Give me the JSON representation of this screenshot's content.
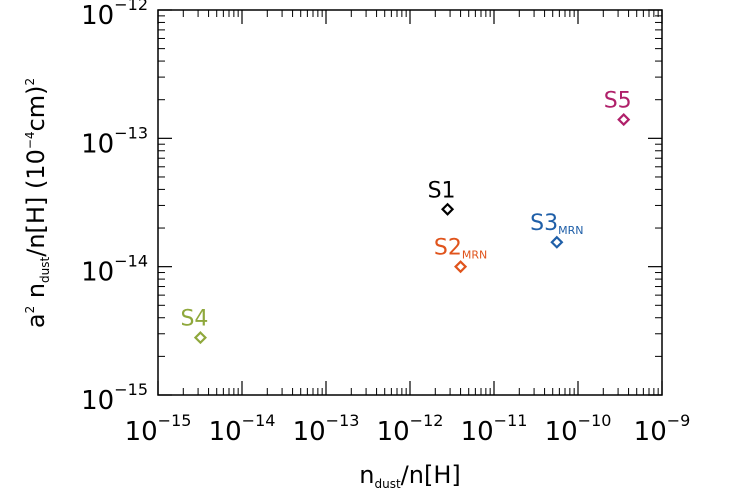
{
  "chart_data": {
    "type": "scatter",
    "title": "",
    "xlabel": "n_dust/n[H]",
    "ylabel": "a² n_dust/n[H] (10⁻⁴cm)²",
    "xscale": "log",
    "yscale": "log",
    "xlim": [
      1e-15,
      1e-09
    ],
    "ylim": [
      1e-15,
      1e-12
    ],
    "x_ticks": [
      {
        "value": 1e-15,
        "base": "10",
        "exp": "−15"
      },
      {
        "value": 1e-14,
        "base": "10",
        "exp": "−14"
      },
      {
        "value": 1e-13,
        "base": "10",
        "exp": "−13"
      },
      {
        "value": 1e-12,
        "base": "10",
        "exp": "−12"
      },
      {
        "value": 1e-11,
        "base": "10",
        "exp": "−11"
      },
      {
        "value": 1e-10,
        "base": "10",
        "exp": "−10"
      },
      {
        "value": 1e-09,
        "base": "10",
        "exp": "−9"
      }
    ],
    "y_ticks": [
      {
        "value": 1e-15,
        "base": "10",
        "exp": "−15"
      },
      {
        "value": 1e-14,
        "base": "10",
        "exp": "−14"
      },
      {
        "value": 1e-13,
        "base": "10",
        "exp": "−13"
      },
      {
        "value": 1e-12,
        "base": "10",
        "exp": "−12"
      }
    ],
    "points": [
      {
        "name": "S1",
        "sub": "",
        "x": 2.8e-12,
        "y": 2.8e-14,
        "color": "#000000"
      },
      {
        "name": "S2",
        "sub": "MRN",
        "x": 4e-12,
        "y": 1e-14,
        "color": "#e0541c"
      },
      {
        "name": "S3",
        "sub": "MRN",
        "x": 5.6e-11,
        "y": 1.55e-14,
        "color": "#1f5fa8"
      },
      {
        "name": "S4",
        "sub": "",
        "x": 3.2e-15,
        "y": 2.8e-15,
        "color": "#8fa83c"
      },
      {
        "name": "S5",
        "sub": "",
        "x": 3.5e-10,
        "y": 1.4e-13,
        "color": "#b0206a"
      }
    ],
    "grid": false,
    "legend": "none"
  }
}
